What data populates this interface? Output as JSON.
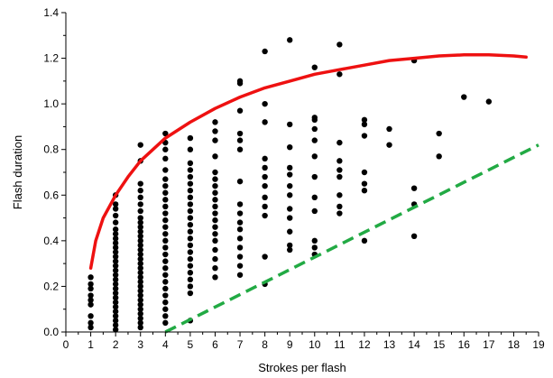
{
  "chart_data": {
    "type": "scatter",
    "title": "",
    "xlabel": "Strokes per flash",
    "ylabel": "Flash duration",
    "xlim": [
      0,
      19
    ],
    "ylim": [
      0,
      1.4
    ],
    "x_ticks": [
      "0",
      "1",
      "2",
      "3",
      "4",
      "5",
      "6",
      "7",
      "8",
      "9",
      "10",
      "11",
      "12",
      "13",
      "14",
      "15",
      "16",
      "17",
      "18",
      "19"
    ],
    "y_ticks": [
      "0.0",
      "0.2",
      "0.4",
      "0.6",
      "0.8",
      "1.0",
      "1.2",
      "1.4"
    ],
    "grid": false,
    "legend": "none",
    "colors": {
      "points": "#000000",
      "upper_curve": "#ee1111",
      "lower_line": "#22aa44"
    },
    "series": [
      {
        "kind": "points",
        "points": [
          [
            1,
            0.02
          ],
          [
            1,
            0.04
          ],
          [
            1,
            0.07
          ],
          [
            1,
            0.12
          ],
          [
            1,
            0.14
          ],
          [
            1,
            0.16
          ],
          [
            1,
            0.19
          ],
          [
            1,
            0.21
          ],
          [
            1,
            0.24
          ],
          [
            2,
            0.01
          ],
          [
            2,
            0.03
          ],
          [
            2,
            0.05
          ],
          [
            2,
            0.07
          ],
          [
            2,
            0.09
          ],
          [
            2,
            0.11
          ],
          [
            2,
            0.13
          ],
          [
            2,
            0.15
          ],
          [
            2,
            0.17
          ],
          [
            2,
            0.19
          ],
          [
            2,
            0.21
          ],
          [
            2,
            0.23
          ],
          [
            2,
            0.25
          ],
          [
            2,
            0.27
          ],
          [
            2,
            0.29
          ],
          [
            2,
            0.31
          ],
          [
            2,
            0.33
          ],
          [
            2,
            0.35
          ],
          [
            2,
            0.37
          ],
          [
            2,
            0.39
          ],
          [
            2,
            0.41
          ],
          [
            2,
            0.43
          ],
          [
            2,
            0.45
          ],
          [
            2,
            0.48
          ],
          [
            2,
            0.51
          ],
          [
            2,
            0.54
          ],
          [
            2,
            0.56
          ],
          [
            2,
            0.6
          ],
          [
            3,
            0.02
          ],
          [
            3,
            0.04
          ],
          [
            3,
            0.06
          ],
          [
            3,
            0.08
          ],
          [
            3,
            0.1
          ],
          [
            3,
            0.12
          ],
          [
            3,
            0.14
          ],
          [
            3,
            0.16
          ],
          [
            3,
            0.18
          ],
          [
            3,
            0.2
          ],
          [
            3,
            0.22
          ],
          [
            3,
            0.24
          ],
          [
            3,
            0.26
          ],
          [
            3,
            0.28
          ],
          [
            3,
            0.3
          ],
          [
            3,
            0.32
          ],
          [
            3,
            0.34
          ],
          [
            3,
            0.36
          ],
          [
            3,
            0.38
          ],
          [
            3,
            0.4
          ],
          [
            3,
            0.42
          ],
          [
            3,
            0.44
          ],
          [
            3,
            0.46
          ],
          [
            3,
            0.48
          ],
          [
            3,
            0.5
          ],
          [
            3,
            0.53
          ],
          [
            3,
            0.56
          ],
          [
            3,
            0.59
          ],
          [
            3,
            0.62
          ],
          [
            3,
            0.65
          ],
          [
            3,
            0.75
          ],
          [
            3,
            0.82
          ],
          [
            4,
            0.04
          ],
          [
            4,
            0.07
          ],
          [
            4,
            0.1
          ],
          [
            4,
            0.13
          ],
          [
            4,
            0.16
          ],
          [
            4,
            0.19
          ],
          [
            4,
            0.22
          ],
          [
            4,
            0.25
          ],
          [
            4,
            0.28
          ],
          [
            4,
            0.31
          ],
          [
            4,
            0.34
          ],
          [
            4,
            0.37
          ],
          [
            4,
            0.4
          ],
          [
            4,
            0.43
          ],
          [
            4,
            0.46
          ],
          [
            4,
            0.49
          ],
          [
            4,
            0.52
          ],
          [
            4,
            0.55
          ],
          [
            4,
            0.58
          ],
          [
            4,
            0.61
          ],
          [
            4,
            0.64
          ],
          [
            4,
            0.67
          ],
          [
            4,
            0.71
          ],
          [
            4,
            0.76
          ],
          [
            4,
            0.8
          ],
          [
            4,
            0.83
          ],
          [
            4,
            0.87
          ],
          [
            5,
            0.05
          ],
          [
            5,
            0.17
          ],
          [
            5,
            0.2
          ],
          [
            5,
            0.23
          ],
          [
            5,
            0.26
          ],
          [
            5,
            0.29
          ],
          [
            5,
            0.32
          ],
          [
            5,
            0.35
          ],
          [
            5,
            0.38
          ],
          [
            5,
            0.41
          ],
          [
            5,
            0.44
          ],
          [
            5,
            0.47
          ],
          [
            5,
            0.5
          ],
          [
            5,
            0.53
          ],
          [
            5,
            0.56
          ],
          [
            5,
            0.59
          ],
          [
            5,
            0.62
          ],
          [
            5,
            0.65
          ],
          [
            5,
            0.68
          ],
          [
            5,
            0.71
          ],
          [
            5,
            0.74
          ],
          [
            5,
            0.8
          ],
          [
            5,
            0.85
          ],
          [
            6,
            0.24
          ],
          [
            6,
            0.28
          ],
          [
            6,
            0.32
          ],
          [
            6,
            0.36
          ],
          [
            6,
            0.4
          ],
          [
            6,
            0.43
          ],
          [
            6,
            0.46
          ],
          [
            6,
            0.49
          ],
          [
            6,
            0.52
          ],
          [
            6,
            0.55
          ],
          [
            6,
            0.58
          ],
          [
            6,
            0.61
          ],
          [
            6,
            0.64
          ],
          [
            6,
            0.67
          ],
          [
            6,
            0.7
          ],
          [
            6,
            0.77
          ],
          [
            6,
            0.84
          ],
          [
            6,
            0.88
          ],
          [
            6,
            0.92
          ],
          [
            7,
            0.25
          ],
          [
            7,
            0.29
          ],
          [
            7,
            0.33
          ],
          [
            7,
            0.37
          ],
          [
            7,
            0.41
          ],
          [
            7,
            0.45
          ],
          [
            7,
            0.48
          ],
          [
            7,
            0.52
          ],
          [
            7,
            0.56
          ],
          [
            7,
            0.66
          ],
          [
            7,
            0.8
          ],
          [
            7,
            0.84
          ],
          [
            7,
            0.87
          ],
          [
            7,
            0.97
          ],
          [
            7,
            1.09
          ],
          [
            7,
            1.1
          ],
          [
            8,
            0.21
          ],
          [
            8,
            0.33
          ],
          [
            8,
            0.51
          ],
          [
            8,
            0.55
          ],
          [
            8,
            0.59
          ],
          [
            8,
            0.64
          ],
          [
            8,
            0.68
          ],
          [
            8,
            0.72
          ],
          [
            8,
            0.76
          ],
          [
            8,
            0.92
          ],
          [
            8,
            1.0
          ],
          [
            8,
            1.23
          ],
          [
            9,
            0.36
          ],
          [
            9,
            0.38
          ],
          [
            9,
            0.44
          ],
          [
            9,
            0.5
          ],
          [
            9,
            0.54
          ],
          [
            9,
            0.6
          ],
          [
            9,
            0.64
          ],
          [
            9,
            0.69
          ],
          [
            9,
            0.72
          ],
          [
            9,
            0.81
          ],
          [
            9,
            0.91
          ],
          [
            9,
            1.28
          ],
          [
            10,
            0.34
          ],
          [
            10,
            0.37
          ],
          [
            10,
            0.4
          ],
          [
            10,
            0.53
          ],
          [
            10,
            0.59
          ],
          [
            10,
            0.68
          ],
          [
            10,
            0.77
          ],
          [
            10,
            0.84
          ],
          [
            10,
            0.89
          ],
          [
            10,
            0.93
          ],
          [
            10,
            0.94
          ],
          [
            10,
            1.16
          ],
          [
            11,
            0.52
          ],
          [
            11,
            0.55
          ],
          [
            11,
            0.6
          ],
          [
            11,
            0.68
          ],
          [
            11,
            0.71
          ],
          [
            11,
            0.75
          ],
          [
            11,
            0.83
          ],
          [
            11,
            1.13
          ],
          [
            11,
            1.26
          ],
          [
            12,
            0.4
          ],
          [
            12,
            0.62
          ],
          [
            12,
            0.65
          ],
          [
            12,
            0.7
          ],
          [
            12,
            0.86
          ],
          [
            12,
            0.91
          ],
          [
            12,
            0.93
          ],
          [
            13,
            0.82
          ],
          [
            13,
            0.89
          ],
          [
            14,
            0.42
          ],
          [
            14,
            0.56
          ],
          [
            14,
            0.63
          ],
          [
            14,
            1.19
          ],
          [
            15,
            0.77
          ],
          [
            15,
            0.87
          ],
          [
            16,
            1.03
          ],
          [
            17,
            1.01
          ]
        ]
      },
      {
        "kind": "curve",
        "points": [
          [
            1,
            0.28
          ],
          [
            1.2,
            0.4
          ],
          [
            1.5,
            0.5
          ],
          [
            2,
            0.6
          ],
          [
            2.5,
            0.68
          ],
          [
            3,
            0.75
          ],
          [
            4,
            0.85
          ],
          [
            5,
            0.92
          ],
          [
            6,
            0.98
          ],
          [
            7,
            1.03
          ],
          [
            8,
            1.07
          ],
          [
            9,
            1.1
          ],
          [
            10,
            1.13
          ],
          [
            11,
            1.15
          ],
          [
            12,
            1.17
          ],
          [
            13,
            1.19
          ],
          [
            14,
            1.2
          ],
          [
            15,
            1.21
          ],
          [
            16,
            1.215
          ],
          [
            17,
            1.215
          ],
          [
            18,
            1.21
          ],
          [
            18.5,
            1.205
          ]
        ]
      },
      {
        "kind": "dashed-line",
        "points": [
          [
            4,
            0
          ],
          [
            19,
            0.82
          ]
        ]
      }
    ]
  }
}
